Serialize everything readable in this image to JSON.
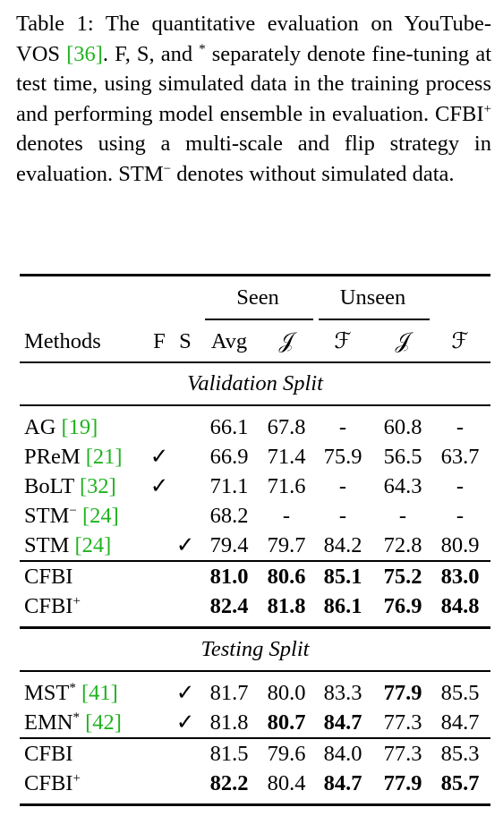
{
  "caption": {
    "segments": [
      "Table 1: The quantitative evaluation on YouTube-VOS ",
      "[36]",
      ". F, S, and ",
      "*",
      " separately denote fine-tuning at test time, using simulated data in the training process and performing model ensemble in evaluation. CFBI",
      "+",
      " denotes using a multi-scale and flip strategy in evaluation. STM",
      "−",
      " denotes without simulated data."
    ],
    "cite_segments": [
      1
    ],
    "sup_segments": [
      3,
      5,
      7
    ]
  },
  "table": {
    "column_groups": [
      {
        "label": "Seen",
        "columns": [
          4,
          5
        ]
      },
      {
        "label": "Unseen",
        "columns": [
          6,
          7
        ]
      }
    ],
    "columns": [
      "Methods",
      "F",
      "S",
      "Avg",
      "𝒥",
      "ℱ",
      "𝒥",
      "ℱ"
    ],
    "sections": [
      {
        "title": "Validation Split",
        "blocks": [
          [
            {
              "method": "AG",
              "cite": "[19]",
              "values": [
                "66.1",
                "67.8",
                "-",
                "60.8",
                "-"
              ],
              "bold": []
            },
            {
              "method": "PReM",
              "cite": "[21]",
              "f": "✓",
              "values": [
                "66.9",
                "71.4",
                "75.9",
                "56.5",
                "63.7"
              ],
              "bold": []
            },
            {
              "method": "BoLT",
              "cite": "[32]",
              "f": "✓",
              "values": [
                "71.1",
                "71.6",
                "-",
                "64.3",
                "-"
              ],
              "bold": []
            },
            {
              "method": "STM",
              "sup": "−",
              "cite": "[24]",
              "values": [
                "68.2",
                "-",
                "-",
                "-",
                "-"
              ],
              "bold": []
            },
            {
              "method": "STM",
              "cite": "[24]",
              "s": "✓",
              "values": [
                "79.4",
                "79.7",
                "84.2",
                "72.8",
                "80.9"
              ],
              "bold": []
            }
          ],
          [
            {
              "method": "CFBI",
              "values": [
                "81.0",
                "80.6",
                "85.1",
                "75.2",
                "83.0"
              ],
              "bold": [
                0,
                1,
                2,
                3,
                4
              ]
            },
            {
              "method": "CFBI",
              "sup": "+",
              "values": [
                "82.4",
                "81.8",
                "86.1",
                "76.9",
                "84.8"
              ],
              "bold": [
                0,
                1,
                2,
                3,
                4
              ]
            }
          ]
        ]
      },
      {
        "title": "Testing Split",
        "blocks": [
          [
            {
              "method": "MST",
              "sup": "*",
              "cite": "[41]",
              "s": "✓",
              "values": [
                "81.7",
                "80.0",
                "83.3",
                "77.9",
                "85.5"
              ],
              "bold": [
                3
              ]
            },
            {
              "method": "EMN",
              "sup": "*",
              "cite": "[42]",
              "s": "✓",
              "values": [
                "81.8",
                "80.7",
                "84.7",
                "77.3",
                "84.7"
              ],
              "bold": [
                1,
                2
              ]
            }
          ],
          [
            {
              "method": "CFBI",
              "values": [
                "81.5",
                "79.6",
                "84.0",
                "77.3",
                "85.3"
              ],
              "bold": []
            },
            {
              "method": "CFBI",
              "sup": "+",
              "values": [
                "82.2",
                "80.4",
                "84.7",
                "77.9",
                "85.7"
              ],
              "bold": [
                0,
                2,
                3,
                4
              ]
            }
          ]
        ]
      }
    ]
  }
}
